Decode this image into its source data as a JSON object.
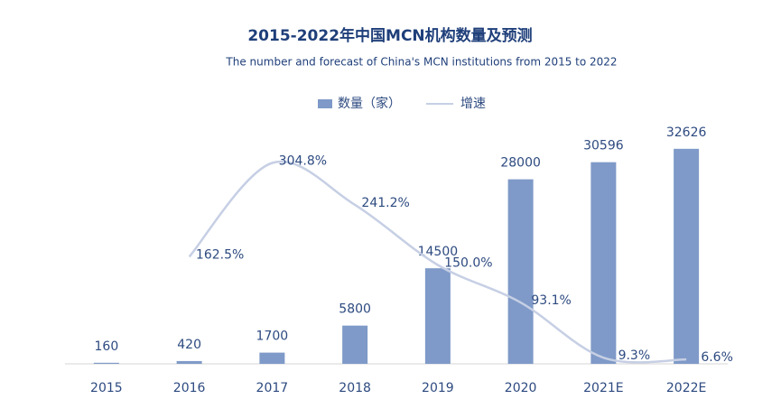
{
  "chart_data": {
    "type": "bar",
    "title": "2015-2022年中国MCN机构数量及预测",
    "subtitle": "The number and forecast of China's MCN institutions from 2015 to 2022",
    "categories": [
      "2015",
      "2016",
      "2017",
      "2018",
      "2019",
      "2020",
      "2021E",
      "2022E"
    ],
    "series": [
      {
        "name": "数量（家）",
        "type": "bar",
        "color": "#7f9ac8",
        "values": [
          160,
          420,
          1700,
          5800,
          14500,
          28000,
          30596,
          32626
        ]
      },
      {
        "name": "增速",
        "type": "line",
        "axis": "y2",
        "color": "#c6cfe4",
        "values": [
          null,
          162.5,
          304.8,
          241.2,
          150.0,
          93.1,
          9.3,
          6.6
        ],
        "value_labels": [
          null,
          "162.5%",
          "304.8%",
          "241.2%",
          "150.0%",
          "93.1%",
          "9.3%",
          "6.6%"
        ]
      }
    ],
    "ylim": [
      0,
      40000
    ],
    "y2lim": [
      0,
      400
    ],
    "grid": false
  }
}
